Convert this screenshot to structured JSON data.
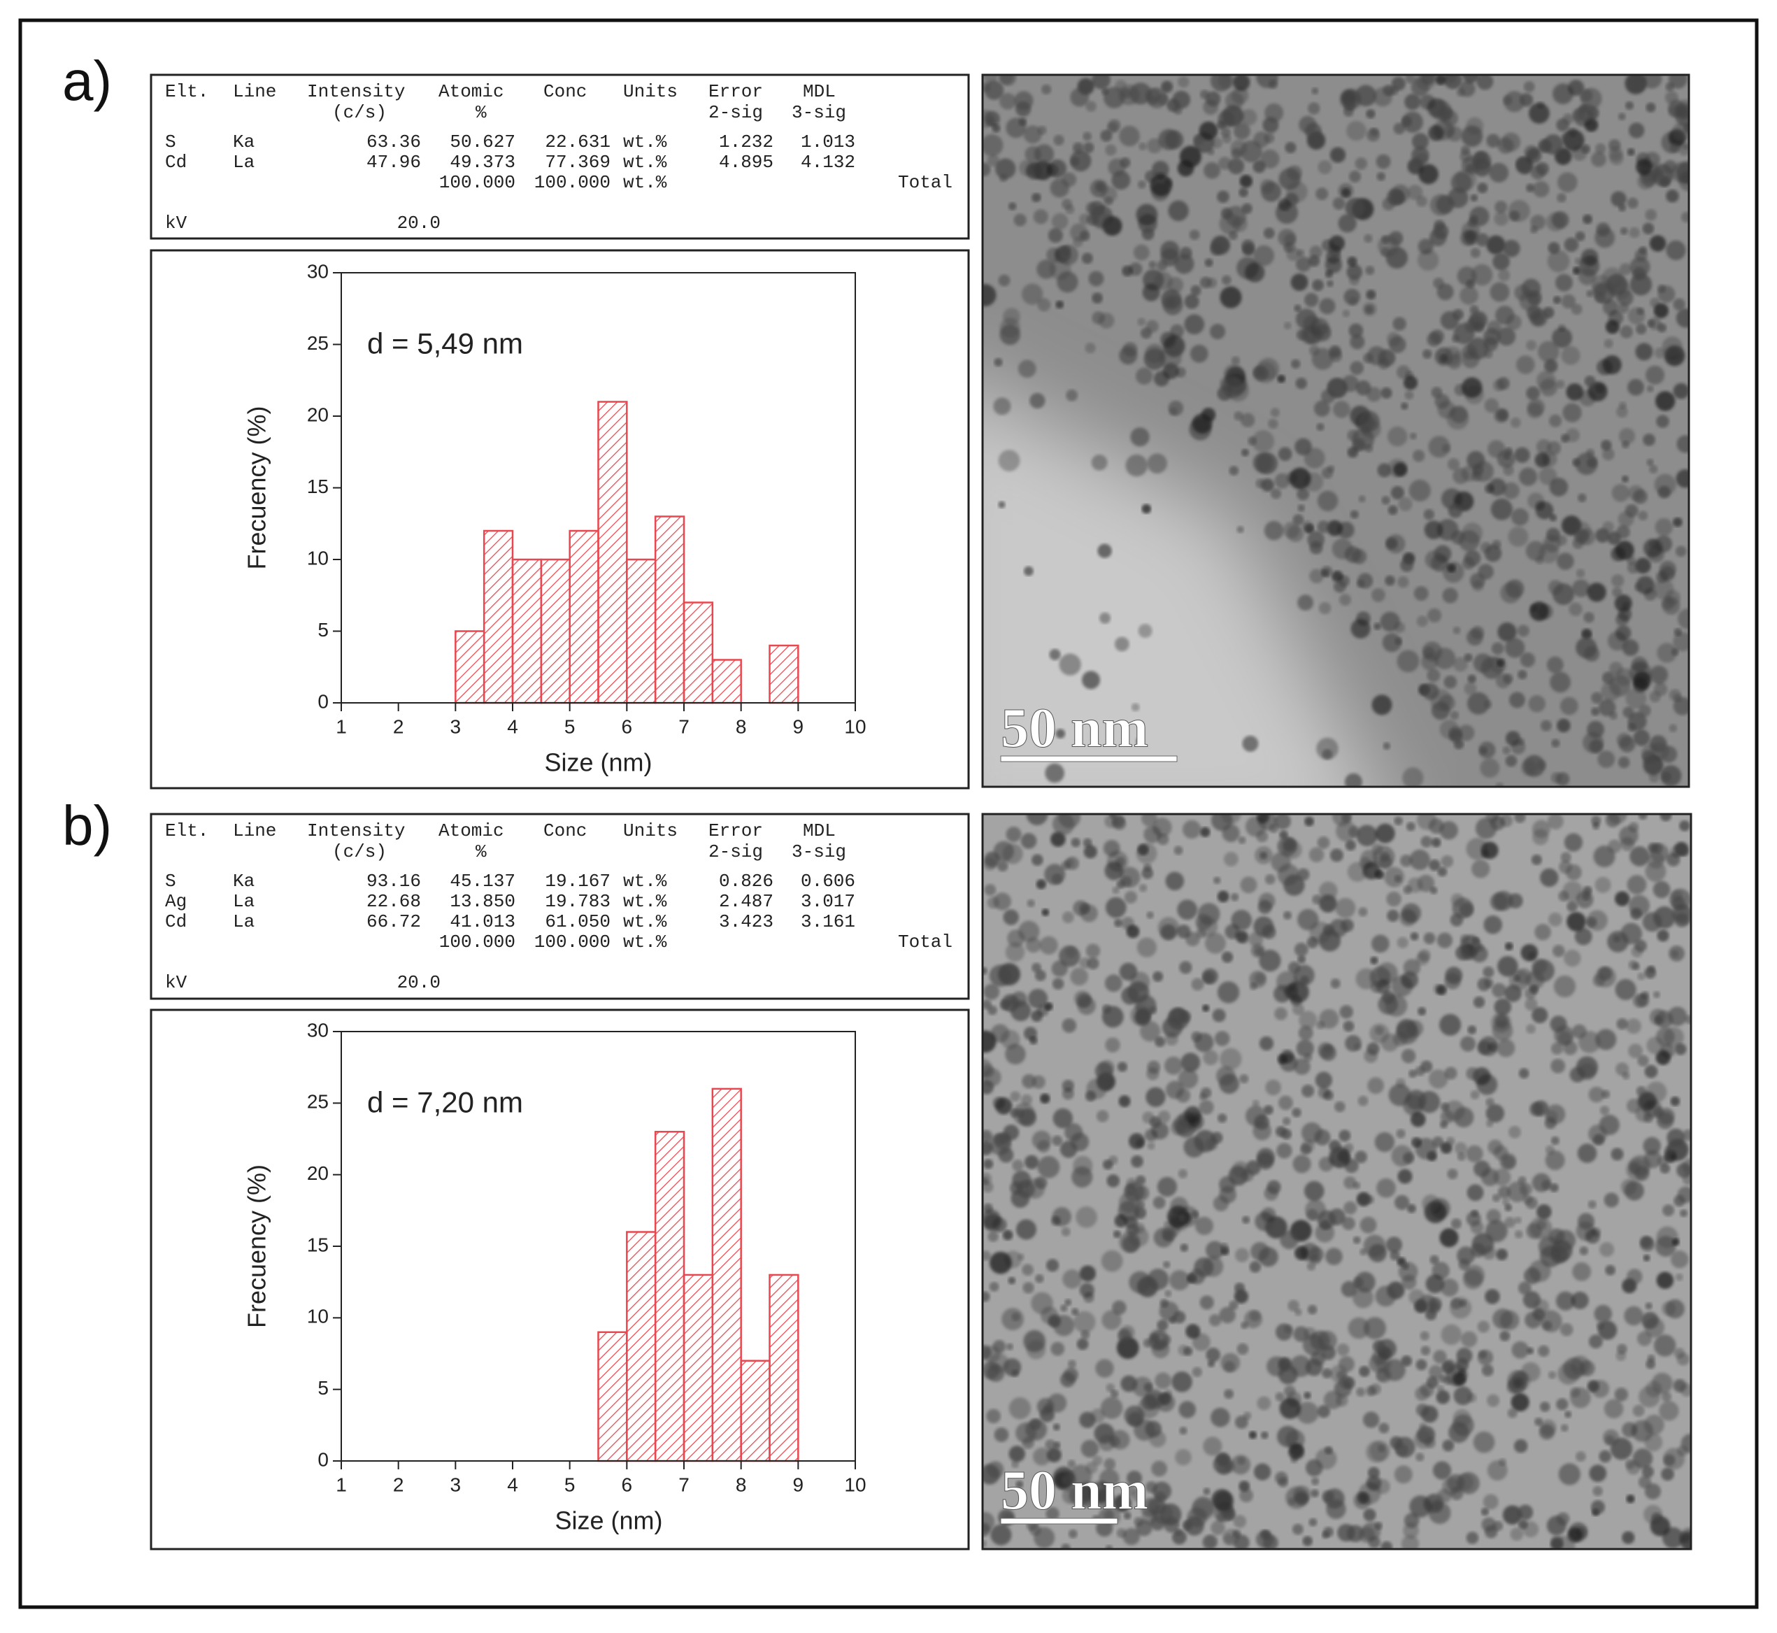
{
  "panels": [
    {
      "label": "a)",
      "eds": {
        "columns": [
          {
            "name": "Elt."
          },
          {
            "name": "Line"
          },
          {
            "name": "Intensity",
            "sub": "(c/s)"
          },
          {
            "name": "Atomic",
            "sub": "%"
          },
          {
            "name": "Conc"
          },
          {
            "name": "Units"
          },
          {
            "name": "Error",
            "sub": "2-sig"
          },
          {
            "name": "MDL",
            "sub": "3-sig"
          }
        ],
        "rows": [
          [
            "S",
            "Ka",
            "63.36",
            "50.627",
            "22.631",
            "wt.%",
            "1.232",
            "1.013"
          ],
          [
            "Cd",
            "La",
            "47.96",
            "49.373",
            "77.369",
            "wt.%",
            "4.895",
            "4.132"
          ]
        ],
        "total": {
          "values": [
            "100.000",
            "100.000",
            "wt.%"
          ],
          "label": "Total"
        },
        "kv": {
          "label": "kV",
          "value": "20.0"
        }
      },
      "scale_bar": "50 nm"
    },
    {
      "label": "b)",
      "eds": {
        "columns": [
          {
            "name": "Elt."
          },
          {
            "name": "Line"
          },
          {
            "name": "Intensity",
            "sub": "(c/s)"
          },
          {
            "name": "Atomic",
            "sub": "%"
          },
          {
            "name": "Conc"
          },
          {
            "name": "Units"
          },
          {
            "name": "Error",
            "sub": "2-sig"
          },
          {
            "name": "MDL",
            "sub": "3-sig"
          }
        ],
        "rows": [
          [
            "S",
            "Ka",
            "93.16",
            "45.137",
            "19.167",
            "wt.%",
            "0.826",
            "0.606"
          ],
          [
            "Ag",
            "La",
            "22.68",
            "13.850",
            "19.783",
            "wt.%",
            "2.487",
            "3.017"
          ],
          [
            "Cd",
            "La",
            "66.72",
            "41.013",
            "61.050",
            "wt.%",
            "3.423",
            "3.161"
          ]
        ],
        "total": {
          "values": [
            "100.000",
            "100.000",
            "wt.%"
          ],
          "label": "Total"
        },
        "kv": {
          "label": "kV",
          "value": "20.0"
        }
      },
      "scale_bar": "50 nm"
    }
  ],
  "chart_data": [
    {
      "type": "histogram",
      "annotation": "d = 5,49 nm",
      "xlabel": "Size (nm)",
      "ylabel": "Frecuency (%)",
      "color": "#e8474f",
      "bins": [
        3,
        3.5,
        4,
        4.5,
        5,
        5.5,
        6,
        6.5,
        7,
        7.5,
        8,
        8.5,
        9
      ],
      "counts": [
        5,
        12,
        10,
        10,
        12,
        21,
        10,
        13,
        7,
        3,
        0,
        4
      ],
      "xlim": [
        1,
        10
      ],
      "xticks": [
        1,
        2,
        3,
        4,
        5,
        6,
        7,
        8,
        9,
        10
      ],
      "ylim": [
        0,
        30
      ],
      "yticks": [
        0,
        5,
        10,
        15,
        20,
        25,
        30
      ]
    },
    {
      "type": "histogram",
      "annotation": "d = 7,20 nm",
      "xlabel": "Size (nm)",
      "ylabel": "Frecuency (%)",
      "color": "#e8474f",
      "bins": [
        5.5,
        6,
        6.5,
        7,
        7.5,
        8,
        8.5,
        9
      ],
      "counts": [
        9,
        16,
        23,
        13,
        26,
        7,
        13
      ],
      "xlim": [
        1,
        10
      ],
      "xticks": [
        1,
        2,
        3,
        4,
        5,
        6,
        7,
        8,
        9,
        10
      ],
      "ylim": [
        0,
        30
      ],
      "yticks": [
        0,
        5,
        10,
        15,
        20,
        25,
        30
      ]
    }
  ]
}
